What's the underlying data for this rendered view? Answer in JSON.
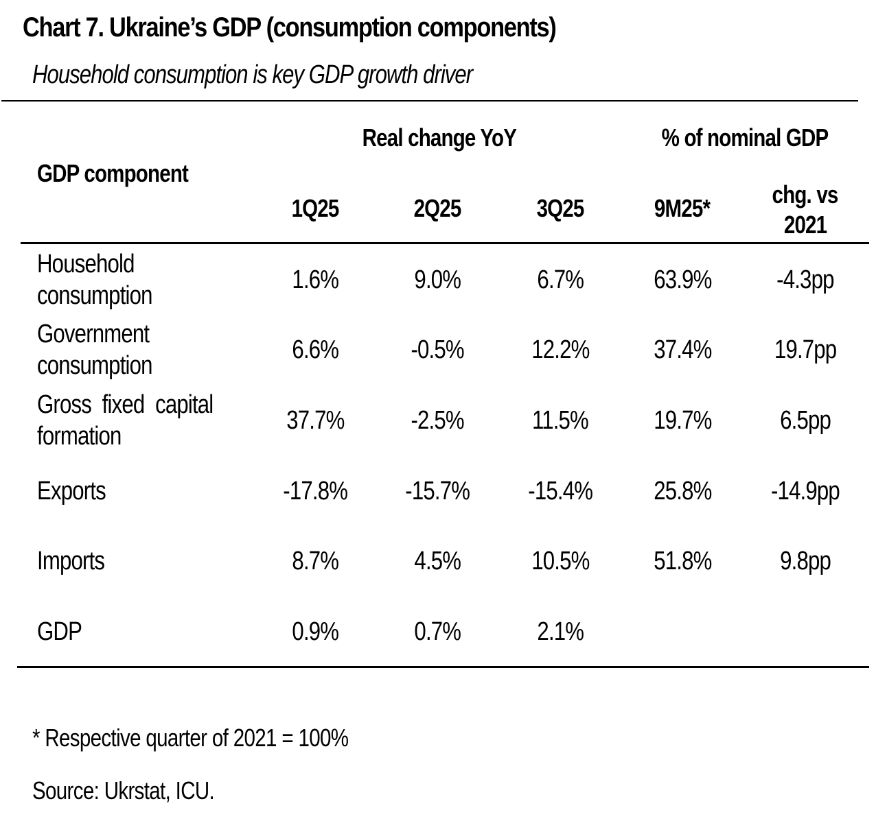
{
  "chart_data": {
    "type": "table",
    "title": "Chart 7. Ukraine’s GDP (consumption components)",
    "subtitle": "Household consumption is key GDP growth driver",
    "header_groups": [
      {
        "label": "Real change YoY",
        "columns": [
          "1Q25",
          "2Q25",
          "3Q25"
        ]
      },
      {
        "label": "% of nominal GDP",
        "columns": [
          "9M25*",
          "chg. vs 2021"
        ]
      }
    ],
    "row_header": "GDP component",
    "columns": [
      "1Q25",
      "2Q25",
      "3Q25",
      "9M25*",
      "chg. vs 2021"
    ],
    "column_header_lines": [
      [
        "1Q25"
      ],
      [
        "2Q25"
      ],
      [
        "3Q25"
      ],
      [
        "9M25*"
      ],
      [
        "chg. vs",
        "2021"
      ]
    ],
    "rows": [
      {
        "label_lines": [
          "Household",
          "consumption"
        ],
        "values": [
          "1.6%",
          "9.0%",
          "6.7%",
          "63.9%",
          "-4.3pp"
        ]
      },
      {
        "label_lines": [
          "Government",
          "consumption"
        ],
        "values": [
          "6.6%",
          "-0.5%",
          "12.2%",
          "37.4%",
          "19.7pp"
        ]
      },
      {
        "label_lines": [
          "Gross  fixed  capital",
          "formation"
        ],
        "values": [
          "37.7%",
          "-2.5%",
          "11.5%",
          "19.7%",
          "6.5pp"
        ]
      },
      {
        "label_lines": [
          "Exports"
        ],
        "values": [
          "-17.8%",
          "-15.7%",
          "-15.4%",
          "25.8%",
          "-14.9pp"
        ]
      },
      {
        "label_lines": [
          "Imports"
        ],
        "values": [
          "8.7%",
          "4.5%",
          "10.5%",
          "51.8%",
          "9.8pp"
        ]
      },
      {
        "label_lines": [
          "GDP"
        ],
        "values": [
          "0.9%",
          "0.7%",
          "2.1%",
          "",
          ""
        ]
      }
    ],
    "footnote": "* Respective quarter of 2021 = 100%",
    "source": "Source: Ukrstat, ICU."
  }
}
